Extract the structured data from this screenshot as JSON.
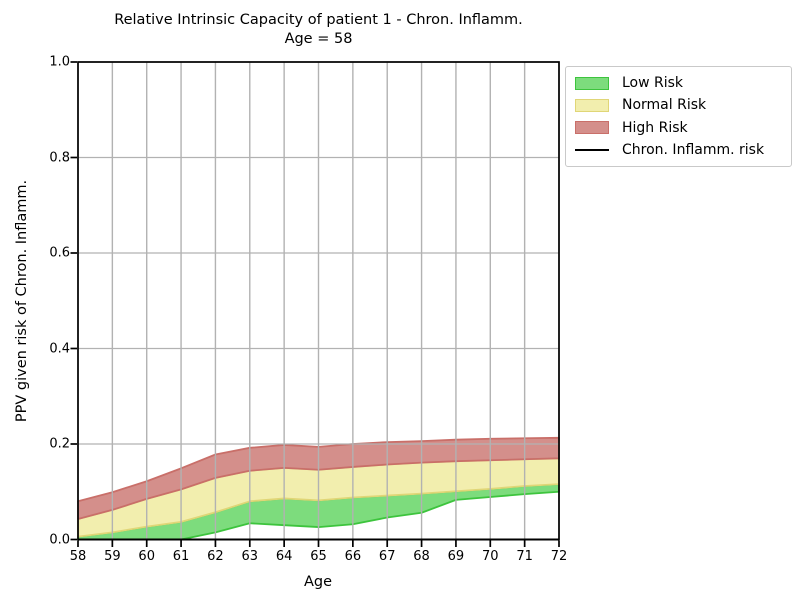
{
  "chart_data": {
    "type": "area",
    "title": "Relative Intrinsic Capacity of patient 1 - Chron. Inflamm.",
    "subtitle": "Age = 58",
    "xlabel": "Age",
    "ylabel": "PPV given risk of Chron. Inflamm.",
    "xlim": [
      58,
      72
    ],
    "ylim": [
      0.0,
      1.0
    ],
    "grid": true,
    "grid_color": "#b2b2b2",
    "axes_color": "#000000",
    "x": [
      58,
      59,
      60,
      61,
      62,
      63,
      64,
      65,
      66,
      67,
      68,
      69,
      70,
      71,
      72
    ],
    "x_tick_labels": [
      "58",
      "59",
      "60",
      "61",
      "62",
      "63",
      "64",
      "65",
      "66",
      "67",
      "68",
      "69",
      "70",
      "71",
      "72"
    ],
    "y_tick_values": [
      0.0,
      0.2,
      0.4,
      0.6,
      0.8,
      1.0
    ],
    "y_tick_labels": [
      "0.0",
      "0.2",
      "0.4",
      "0.6",
      "0.8",
      "1.0"
    ],
    "bands": [
      {
        "name": "Low Risk",
        "fill": "#7ddc7d",
        "edge": "#3dc43d",
        "lower": [
          0.0,
          0.0,
          0.0,
          0.0,
          0.015,
          0.034,
          0.03,
          0.026,
          0.032,
          0.046,
          0.056,
          0.083,
          0.089,
          0.095,
          0.1
        ],
        "upper": [
          0.006,
          0.015,
          0.027,
          0.037,
          0.057,
          0.08,
          0.086,
          0.082,
          0.088,
          0.092,
          0.096,
          0.101,
          0.106,
          0.112,
          0.116
        ]
      },
      {
        "name": "Normal Risk",
        "fill": "#f2eeae",
        "edge": "#e0d677",
        "lower": [
          0.006,
          0.015,
          0.027,
          0.037,
          0.057,
          0.08,
          0.086,
          0.082,
          0.088,
          0.092,
          0.096,
          0.101,
          0.106,
          0.112,
          0.116
        ],
        "upper": [
          0.043,
          0.062,
          0.085,
          0.105,
          0.129,
          0.144,
          0.15,
          0.146,
          0.152,
          0.157,
          0.161,
          0.164,
          0.166,
          0.168,
          0.17
        ]
      },
      {
        "name": "High Risk",
        "fill": "#d48f8b",
        "edge": "#c96f69",
        "lower": [
          0.043,
          0.062,
          0.085,
          0.105,
          0.129,
          0.144,
          0.15,
          0.146,
          0.152,
          0.157,
          0.161,
          0.164,
          0.166,
          0.168,
          0.17
        ],
        "upper": [
          0.08,
          0.099,
          0.122,
          0.149,
          0.178,
          0.192,
          0.198,
          0.194,
          0.2,
          0.204,
          0.206,
          0.209,
          0.211,
          0.212,
          0.213
        ]
      }
    ],
    "line": {
      "name": "Chron. Inflamm. risk",
      "color": "#000000",
      "values": [
        0.0,
        0.0,
        0.0,
        0.0,
        0.0,
        0.0,
        0.0,
        0.0,
        0.0,
        0.0,
        0.0,
        0.0,
        0.0,
        0.0,
        0.0
      ],
      "note": "flat along the y = 0 baseline (coincides with x-axis)"
    },
    "legend": {
      "position": "outside upper right",
      "items": [
        "Low Risk",
        "Normal Risk",
        "High Risk",
        "Chron. Inflamm. risk"
      ]
    }
  }
}
